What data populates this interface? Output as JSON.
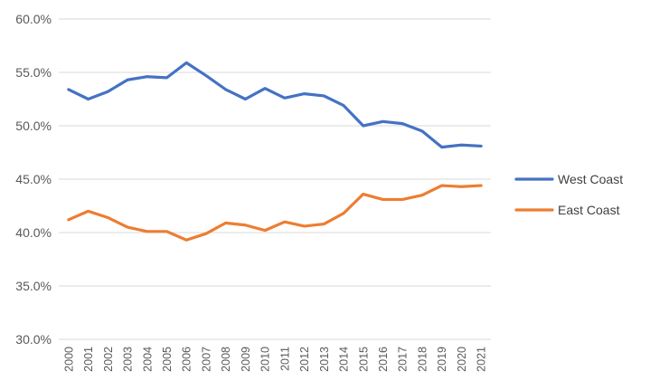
{
  "chart_data": {
    "type": "line",
    "title": "",
    "xlabel": "",
    "ylabel": "",
    "x": [
      "2000",
      "2001",
      "2002",
      "2003",
      "2004",
      "2005",
      "2006",
      "2007",
      "2008",
      "2009",
      "2010",
      "2011",
      "2012",
      "2013",
      "2014",
      "2015",
      "2016",
      "2017",
      "2018",
      "2019",
      "2020",
      "2021"
    ],
    "ylim": [
      0.3,
      0.6
    ],
    "yticks": [
      "30.0%",
      "35.0%",
      "40.0%",
      "45.0%",
      "50.0%",
      "55.0%",
      "60.0%"
    ],
    "grid": true,
    "legend_position": "right",
    "series": [
      {
        "name": "West Coast",
        "color": "#4472C4",
        "values": [
          0.534,
          0.525,
          0.532,
          0.543,
          0.546,
          0.545,
          0.559,
          0.547,
          0.534,
          0.525,
          0.535,
          0.526,
          0.53,
          0.528,
          0.519,
          0.5,
          0.504,
          0.502,
          0.495,
          0.48,
          0.482,
          0.481
        ]
      },
      {
        "name": "East Coast",
        "color": "#ED7D31",
        "values": [
          0.412,
          0.42,
          0.414,
          0.405,
          0.401,
          0.401,
          0.393,
          0.399,
          0.409,
          0.407,
          0.402,
          0.41,
          0.406,
          0.408,
          0.418,
          0.436,
          0.431,
          0.431,
          0.435,
          0.444,
          0.443,
          0.444
        ]
      }
    ]
  }
}
